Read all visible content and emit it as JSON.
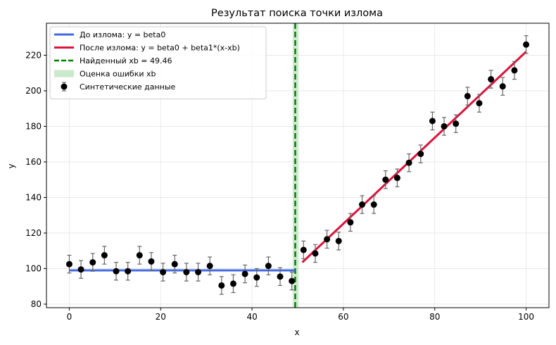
{
  "chart_data": {
    "type": "scatter",
    "title": "Результат поиска точки излома",
    "xlabel": "x",
    "ylabel": "y",
    "xlim": [
      -5,
      105
    ],
    "ylim": [
      78,
      238
    ],
    "xticks": [
      0,
      20,
      40,
      60,
      80,
      100
    ],
    "yticks": [
      80,
      100,
      120,
      140,
      160,
      180,
      200,
      220
    ],
    "grid": true,
    "legend_position": "top-left",
    "colors": {
      "before": "#4169e1",
      "after": "#dc143c",
      "breakpoint": "#008000",
      "error_band": "#a8dba8",
      "points": "#000000",
      "errorbars": "#666666"
    },
    "legend": [
      {
        "label": "До излома: y = beta0",
        "kind": "line",
        "color": "#4169e1"
      },
      {
        "label": "После излома: y = beta0 + beta1*(x-xb)",
        "kind": "line",
        "color": "#dc143c"
      },
      {
        "label": "Найденный xb = 49.46",
        "kind": "dashed",
        "color": "#008000"
      },
      {
        "label": "Оценка ошибки xb",
        "kind": "patch",
        "color": "#a8dba8"
      },
      {
        "label": "Синтетические данные",
        "kind": "errorbar",
        "color": "#000000"
      }
    ],
    "breakpoint": {
      "xb": 49.46,
      "band": [
        48.9,
        50.2
      ]
    },
    "fit_before": {
      "x": [
        0,
        49.46
      ],
      "y": [
        99,
        99
      ]
    },
    "fit_after": {
      "x": [
        51,
        100
      ],
      "y": [
        103.5,
        222
      ]
    },
    "points": {
      "x": [
        0,
        2.56,
        5.13,
        7.69,
        10.26,
        12.82,
        15.38,
        17.95,
        20.51,
        23.08,
        25.64,
        28.21,
        30.77,
        33.33,
        35.9,
        38.46,
        41.03,
        43.59,
        46.15,
        48.72,
        51.28,
        53.85,
        56.41,
        58.97,
        61.54,
        64.1,
        66.67,
        69.23,
        71.79,
        74.36,
        76.92,
        79.49,
        82.05,
        84.62,
        87.18,
        89.74,
        92.31,
        94.87,
        97.44,
        100
      ],
      "y": [
        102.5,
        99.5,
        103.5,
        107.5,
        98.5,
        98.5,
        107.5,
        104,
        98,
        102.5,
        98,
        98,
        101.5,
        90.5,
        91.5,
        97,
        95,
        101.5,
        95.5,
        93,
        110.5,
        108.5,
        116.5,
        115.5,
        126,
        136,
        136,
        150,
        151,
        159.5,
        164.5,
        183,
        180,
        181.5,
        197,
        193,
        206.5,
        202.5,
        211.5,
        226
      ],
      "err": 5
    }
  }
}
